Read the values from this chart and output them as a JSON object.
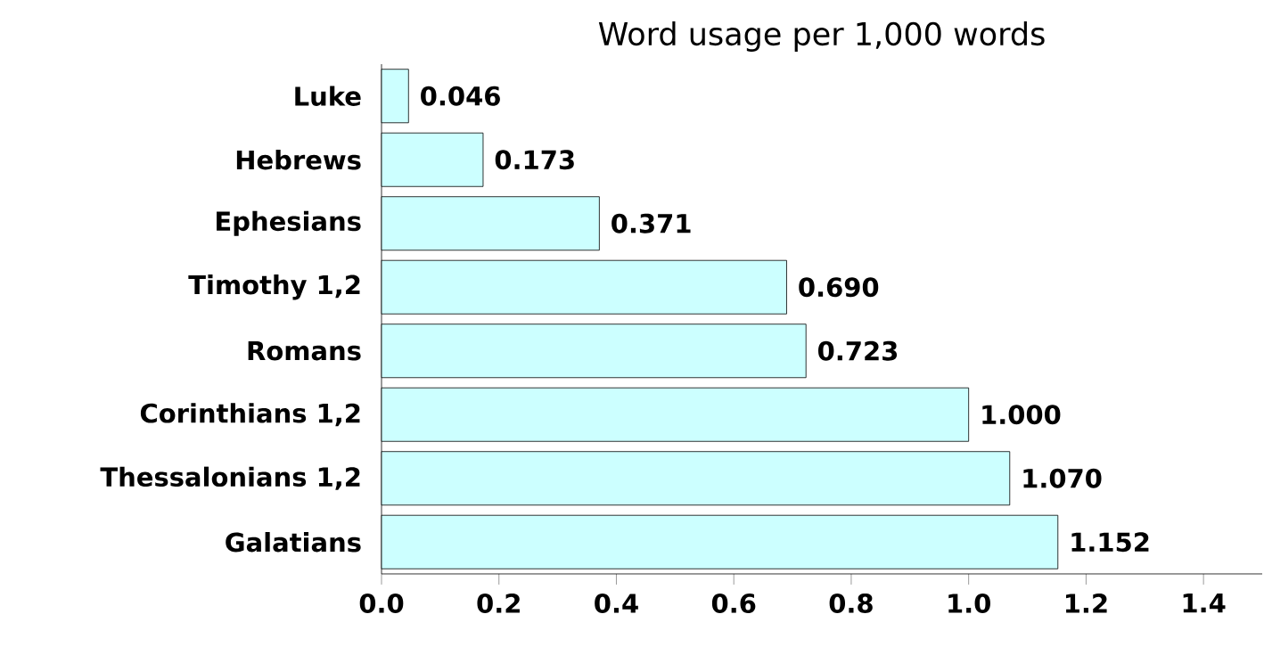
{
  "chart_data": {
    "type": "bar",
    "orientation": "horizontal",
    "title": "Word usage per 1,000 words",
    "categories": [
      "Luke",
      "Hebrews",
      "Ephesians",
      "Timothy 1,2",
      "Romans",
      "Corinthians 1,2",
      "Thessalonians 1,2",
      "Galatians"
    ],
    "values": [
      0.046,
      0.173,
      0.371,
      0.69,
      0.723,
      1.0,
      1.07,
      1.152
    ],
    "value_labels": [
      "0.046",
      "0.173",
      "0.371",
      "0.690",
      "0.723",
      "1.000",
      "1.070",
      "1.152"
    ],
    "color": "#ccffff",
    "xlim": [
      0,
      1.5
    ],
    "xticks": [
      {
        "value": 0,
        "label": "0.0"
      },
      {
        "value": 0.2,
        "label": "0.2"
      },
      {
        "value": 0.4,
        "label": "0.4"
      },
      {
        "value": 0.6,
        "label": "0.6"
      },
      {
        "value": 0.8,
        "label": "0.8"
      },
      {
        "value": 1.0,
        "label": "1.0"
      },
      {
        "value": 1.2,
        "label": "1.2"
      },
      {
        "value": 1.4,
        "label": "1.4"
      }
    ]
  }
}
